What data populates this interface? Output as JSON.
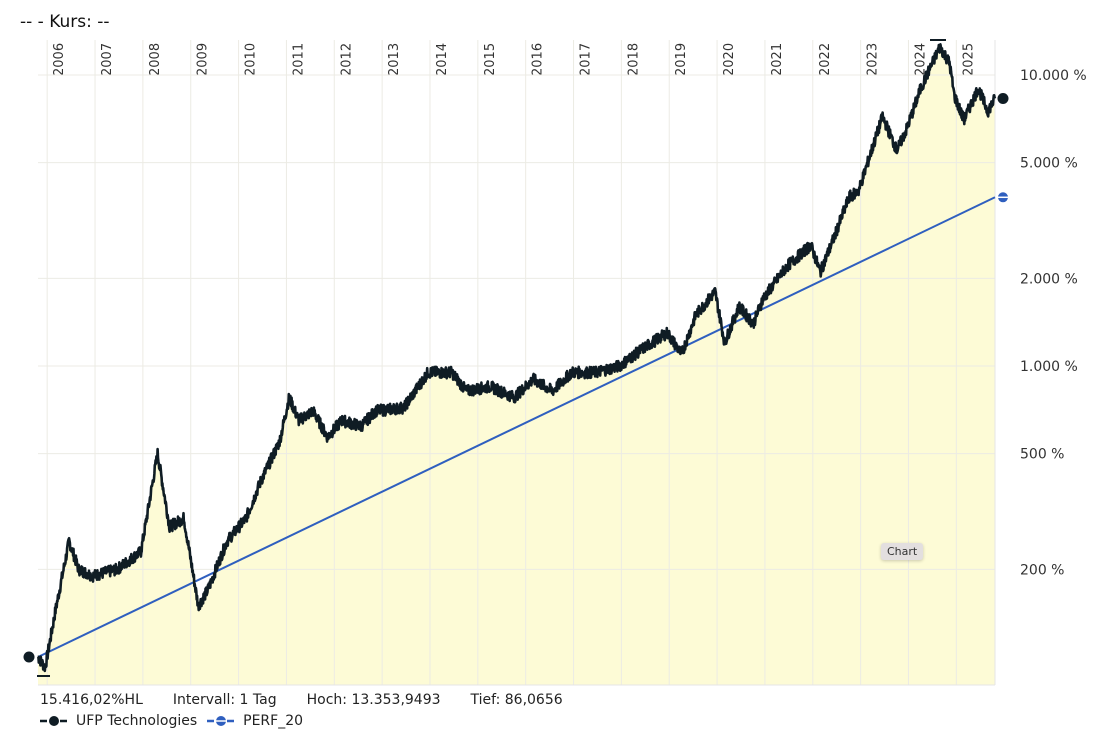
{
  "header": {
    "title": "--  - Kurs: --"
  },
  "info": {
    "range": "15.416,02%HL",
    "interval": "Intervall: 1 Tag",
    "high": "Hoch: 13.353,9493",
    "low": "Tief: 86,0656"
  },
  "tooltip": "Chart",
  "colors": {
    "price": "#0f1c24",
    "perf": "#2f5fbf",
    "fill": "#fdfbd6",
    "grid": "#ecebe4"
  },
  "chart_data": {
    "type": "line",
    "title": "--  - Kurs: --",
    "yscale": "log",
    "ylim": [
      86,
      13354
    ],
    "xlim": [
      2005.85,
      2025.85
    ],
    "x_ticks": [
      "2006",
      "2007",
      "2008",
      "2009",
      "2010",
      "2011",
      "2012",
      "2013",
      "2014",
      "2015",
      "2016",
      "2017",
      "2018",
      "2019",
      "2020",
      "2021",
      "2022",
      "2023",
      "2024",
      "2025"
    ],
    "y_ticks": [
      {
        "value": 10000,
        "label": "10.000 %"
      },
      {
        "value": 5000,
        "label": "5.000 %"
      },
      {
        "value": 2000,
        "label": "2.000 %"
      },
      {
        "value": 1000,
        "label": "1.000 %"
      },
      {
        "value": 500,
        "label": "500 %"
      },
      {
        "value": 200,
        "label": "200 %"
      }
    ],
    "series": [
      {
        "name": "UFP Technologies",
        "x": [
          2005.85,
          2006.0,
          2006.2,
          2006.5,
          2006.7,
          2007.0,
          2007.5,
          2008.0,
          2008.35,
          2008.6,
          2008.9,
          2009.2,
          2009.4,
          2009.8,
          2010.2,
          2010.5,
          2010.9,
          2011.1,
          2011.3,
          2011.6,
          2011.9,
          2012.2,
          2012.6,
          2012.9,
          2013.5,
          2014.0,
          2014.5,
          2014.8,
          2015.3,
          2015.8,
          2016.2,
          2016.6,
          2017.0,
          2017.5,
          2018.0,
          2018.5,
          2019.0,
          2019.3,
          2019.6,
          2020.0,
          2020.2,
          2020.5,
          2020.8,
          2021.0,
          2021.5,
          2022.0,
          2022.2,
          2022.5,
          2022.8,
          2023.0,
          2023.5,
          2023.8,
          2024.0,
          2024.3,
          2024.7,
          2024.9,
          2025.0,
          2025.2,
          2025.5,
          2025.7,
          2025.85
        ],
        "y": [
          100,
          92,
          140,
          250,
          200,
          190,
          200,
          230,
          500,
          280,
          300,
          150,
          170,
          250,
          300,
          400,
          550,
          780,
          650,
          700,
          570,
          650,
          620,
          700,
          720,
          950,
          950,
          820,
          850,
          780,
          900,
          820,
          950,
          950,
          1000,
          1150,
          1300,
          1100,
          1500,
          1800,
          1200,
          1600,
          1400,
          1700,
          2200,
          2600,
          2100,
          2800,
          3800,
          4000,
          7200,
          5500,
          6500,
          9000,
          12500,
          11000,
          8500,
          7000,
          9000,
          7500,
          8300
        ]
      },
      {
        "name": "PERF_20",
        "x": [
          2005.85,
          2025.85
        ],
        "y": [
          100,
          3800
        ]
      }
    ]
  }
}
